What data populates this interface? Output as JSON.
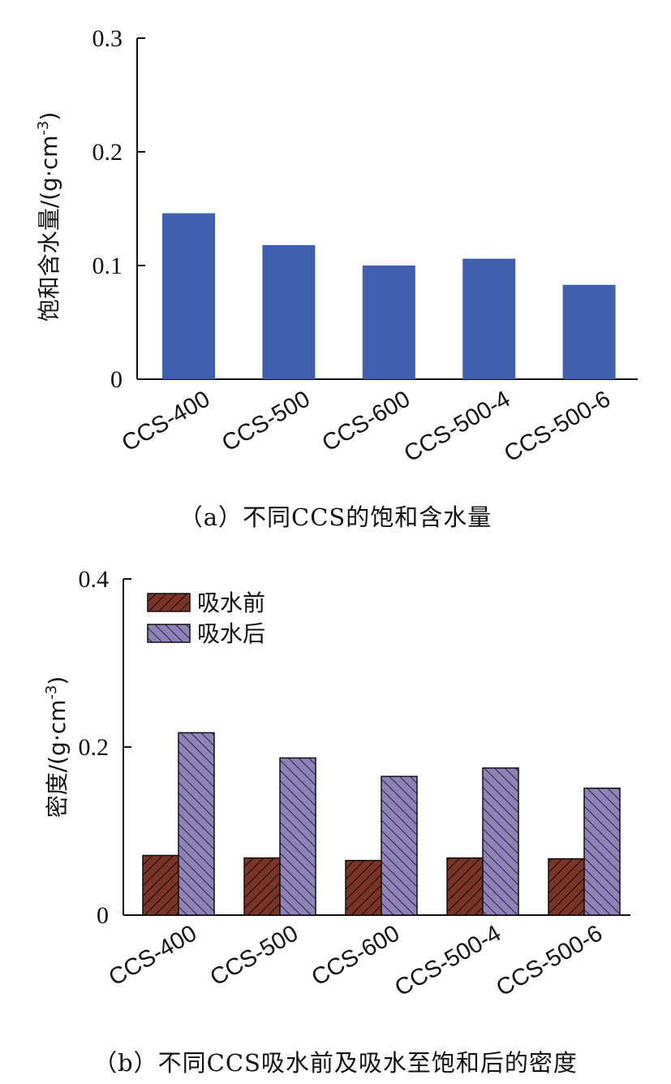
{
  "chart_data": [
    {
      "type": "bar",
      "categories": [
        "CCS-400",
        "CCS-500",
        "CCS-600",
        "CCS-500-4",
        "CCS-500-6"
      ],
      "series": [
        {
          "values": [
            0.146,
            0.118,
            0.1,
            0.106,
            0.083
          ],
          "color": "#3f5fae"
        }
      ],
      "ylabel": "饱和含水量/(g·cm-3)",
      "ylim": [
        0,
        0.3
      ],
      "yticks": [
        0,
        0.1,
        0.2,
        0.3
      ],
      "ytick_labels": [
        "0",
        "0.1",
        "0.2",
        "0.3"
      ],
      "grid": false,
      "legend": "none",
      "caption": "（a）不同CCS的饱和含水量"
    },
    {
      "type": "bar",
      "categories": [
        "CCS-400",
        "CCS-500",
        "CCS-600",
        "CCS-500-4",
        "CCS-500-6"
      ],
      "series": [
        {
          "name": "吸水前",
          "values": [
            0.071,
            0.068,
            0.065,
            0.068,
            0.067
          ],
          "color": "#7a3428",
          "pattern": "diagonal-hatch"
        },
        {
          "name": "吸水后",
          "values": [
            0.217,
            0.187,
            0.165,
            0.175,
            0.151
          ],
          "color": "#8e82b8",
          "pattern": "diagonal-hatch-reverse"
        }
      ],
      "ylabel": "密度/(g·cm-3)",
      "ylim": [
        0,
        0.4
      ],
      "yticks": [
        0,
        0.2,
        0.4
      ],
      "ytick_labels": [
        "0",
        "0.2",
        "0.4"
      ],
      "grid": false,
      "legend": "top-left",
      "caption": "（b）不同CCS吸水前及吸水至饱和后的密度"
    }
  ]
}
